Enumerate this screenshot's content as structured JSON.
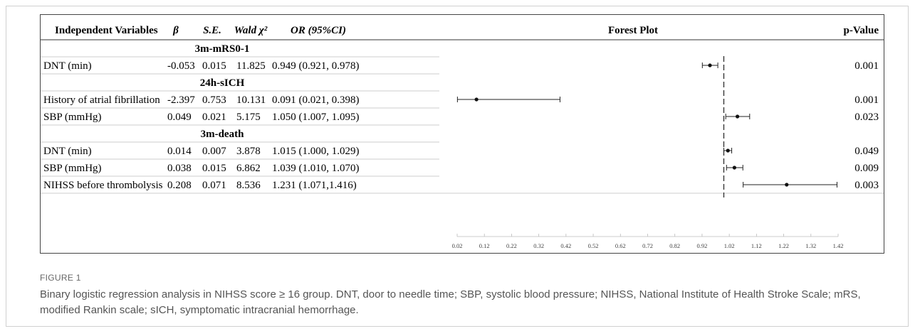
{
  "figure": {
    "label": "FIGURE 1",
    "caption": "Binary logistic regression analysis in NIHSS score ≥ 16 group. DNT, door to needle time; SBP, systolic blood pressure; NIHSS, National Institute of Health Stroke Scale; mRS, modified Rankin scale; sICH, symptomatic intracranial hemorrhage."
  },
  "table": {
    "headers": {
      "variables": "Independent Variables",
      "beta": "β",
      "se": "S.E.",
      "wald": "Wald χ²",
      "or": "OR (95%CI)",
      "forest": "Forest Plot",
      "p": "p-Value"
    }
  },
  "chart_data": {
    "type": "forest",
    "reference_line": 1.0,
    "xlim": [
      0.02,
      1.42
    ],
    "ticks": [
      0.02,
      0.12,
      0.22,
      0.32,
      0.42,
      0.52,
      0.62,
      0.72,
      0.82,
      0.92,
      1.02,
      1.12,
      1.22,
      1.32,
      1.42
    ],
    "tick_labels": [
      "0.02",
      "0.12",
      "0.22",
      "0.32",
      "0.42",
      "0.52",
      "0.62",
      "0.72",
      "0.82",
      "0.92",
      "1.02",
      "1.12",
      "1.22",
      "1.32",
      "1.42"
    ],
    "groups": [
      {
        "label": "3m-mRS0-1",
        "rows": [
          {
            "variable": "DNT (min)",
            "beta": "-0.053",
            "se": "0.015",
            "wald": "11.825",
            "or_text": "0.949 (0.921, 0.978)",
            "or": 0.949,
            "lo": 0.921,
            "hi": 0.978,
            "p": "0.001"
          }
        ]
      },
      {
        "label": "24h-sICH",
        "rows": [
          {
            "variable": "History of atrial fibrillation",
            "beta": "-2.397",
            "se": "0.753",
            "wald": "10.131",
            "or_text": "0.091 (0.021, 0.398)",
            "or": 0.091,
            "lo": 0.021,
            "hi": 0.398,
            "p": "0.001"
          },
          {
            "variable": "SBP (mmHg)",
            "beta": "0.049",
            "se": "0.021",
            "wald": "5.175",
            "or_text": "1.050 (1.007, 1.095)",
            "or": 1.05,
            "lo": 1.007,
            "hi": 1.095,
            "p": "0.023"
          }
        ]
      },
      {
        "label": "3m-death",
        "rows": [
          {
            "variable": "DNT (min)",
            "beta": "0.014",
            "se": "0.007",
            "wald": "3.878",
            "or_text": "1.015 (1.000, 1.029)",
            "or": 1.015,
            "lo": 1.0,
            "hi": 1.029,
            "p": "0.049"
          },
          {
            "variable": "SBP (mmHg)",
            "beta": "0.038",
            "se": "0.015",
            "wald": "6.862",
            "or_text": "1.039 (1.010, 1.070)",
            "or": 1.039,
            "lo": 1.01,
            "hi": 1.07,
            "p": "0.009"
          },
          {
            "variable": "NIHSS before thrombolysis",
            "beta": "0.208",
            "se": "0.071",
            "wald": "8.536",
            "or_text": "1.231 (1.071,1.416)",
            "or": 1.231,
            "lo": 1.071,
            "hi": 1.416,
            "p": "0.003"
          }
        ]
      }
    ]
  }
}
